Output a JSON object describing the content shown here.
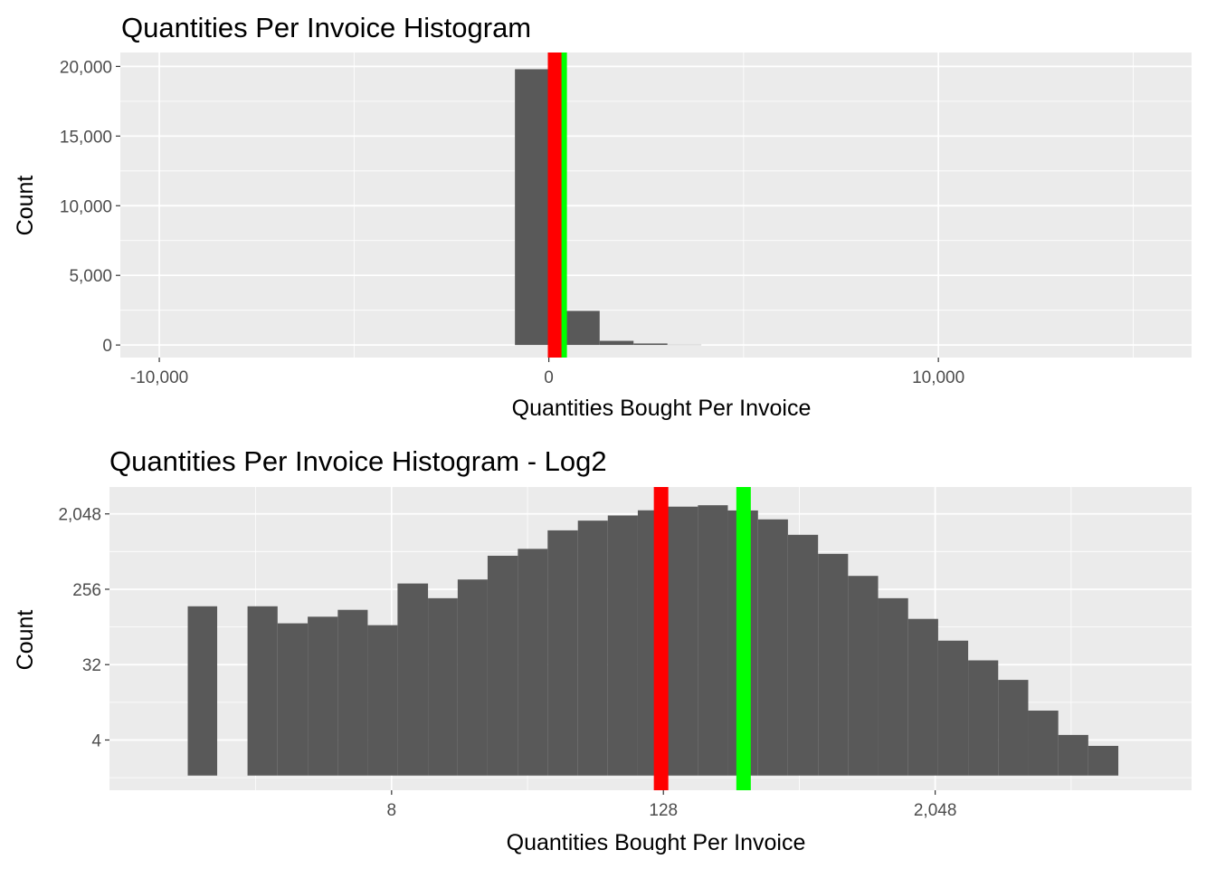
{
  "chart_data": [
    {
      "type": "bar",
      "title": "Quantities Per Invoice Histogram",
      "xlabel": "Quantities Bought Per Invoice",
      "ylabel": "Count",
      "xlim": [
        -11000,
        16500
      ],
      "ylim": [
        -900,
        21000
      ],
      "x_ticks": [
        -10000,
        0,
        10000
      ],
      "x_tick_labels": [
        "-10,000",
        "0",
        "10,000"
      ],
      "y_ticks": [
        0,
        5000,
        10000,
        15000,
        20000
      ],
      "y_tick_labels": [
        "0",
        "5,000",
        "10,000",
        "15,000",
        "20,000"
      ],
      "grid": true,
      "bin_width": 870,
      "bins": [
        {
          "x": -435,
          "count": 19800
        },
        {
          "x": 870,
          "count": 2450
        },
        {
          "x": 1740,
          "count": 300
        },
        {
          "x": 2610,
          "count": 110
        },
        {
          "x": 3480,
          "count": 20
        }
      ],
      "vlines": [
        {
          "x": 160,
          "color": "#ff0000"
        },
        {
          "x": 395,
          "color": "#00ff00"
        }
      ]
    },
    {
      "type": "bar",
      "title": "Quantities Per Invoice Histogram - Log2",
      "xlabel": "Quantities Bought Per Invoice",
      "ylabel": "Count",
      "x_scale": "log2",
      "y_scale": "log2",
      "xlim": [
        0.45,
        28000
      ],
      "ylim": [
        1,
        4300
      ],
      "x_ticks": [
        8,
        128,
        2048
      ],
      "x_tick_labels": [
        "8",
        "128",
        "2,048"
      ],
      "y_ticks": [
        4,
        32,
        256,
        2048
      ],
      "y_tick_labels": [
        "4",
        "32",
        "256",
        "2,048"
      ],
      "grid": true,
      "bins": [
        {
          "x0": 1,
          "x1": 1.35,
          "count": 160
        },
        {
          "x0": 1.84,
          "x1": 2.5,
          "count": 160
        },
        {
          "x0": 2.5,
          "x1": 3.4,
          "count": 100
        },
        {
          "x0": 3.4,
          "x1": 4.62,
          "count": 120
        },
        {
          "x0": 4.62,
          "x1": 6.27,
          "count": 145
        },
        {
          "x0": 6.27,
          "x1": 8.5,
          "count": 95
        },
        {
          "x0": 8.5,
          "x1": 11.6,
          "count": 300
        },
        {
          "x0": 11.6,
          "x1": 15.7,
          "count": 200
        },
        {
          "x0": 15.7,
          "x1": 21.3,
          "count": 335
        },
        {
          "x0": 21.3,
          "x1": 29,
          "count": 645
        },
        {
          "x0": 29,
          "x1": 39.3,
          "count": 780
        },
        {
          "x0": 39.3,
          "x1": 53.5,
          "count": 1300
        },
        {
          "x0": 53.5,
          "x1": 72.6,
          "count": 1700
        },
        {
          "x0": 72.6,
          "x1": 98.6,
          "count": 1960
        },
        {
          "x0": 98.6,
          "x1": 134,
          "count": 2260
        },
        {
          "x0": 134,
          "x1": 182,
          "count": 2500
        },
        {
          "x0": 182,
          "x1": 247,
          "count": 2600
        },
        {
          "x0": 247,
          "x1": 336,
          "count": 2250
        },
        {
          "x0": 336,
          "x1": 456,
          "count": 1760
        },
        {
          "x0": 456,
          "x1": 620,
          "count": 1150
        },
        {
          "x0": 620,
          "x1": 842,
          "count": 680
        },
        {
          "x0": 842,
          "x1": 1144,
          "count": 370
        },
        {
          "x0": 1144,
          "x1": 1554,
          "count": 200
        },
        {
          "x0": 1554,
          "x1": 2111,
          "count": 113
        },
        {
          "x0": 2111,
          "x1": 2867,
          "count": 62
        },
        {
          "x0": 2867,
          "x1": 3895,
          "count": 36
        },
        {
          "x0": 3895,
          "x1": 5291,
          "count": 21
        },
        {
          "x0": 5291,
          "x1": 7188,
          "count": 9
        },
        {
          "x0": 7188,
          "x1": 9763,
          "count": 4.6
        },
        {
          "x0": 9763,
          "x1": 13263,
          "count": 3.4
        }
      ],
      "vlines": [
        {
          "x": 125,
          "color": "#ff0000"
        },
        {
          "x": 290,
          "color": "#00ff00"
        }
      ]
    }
  ]
}
